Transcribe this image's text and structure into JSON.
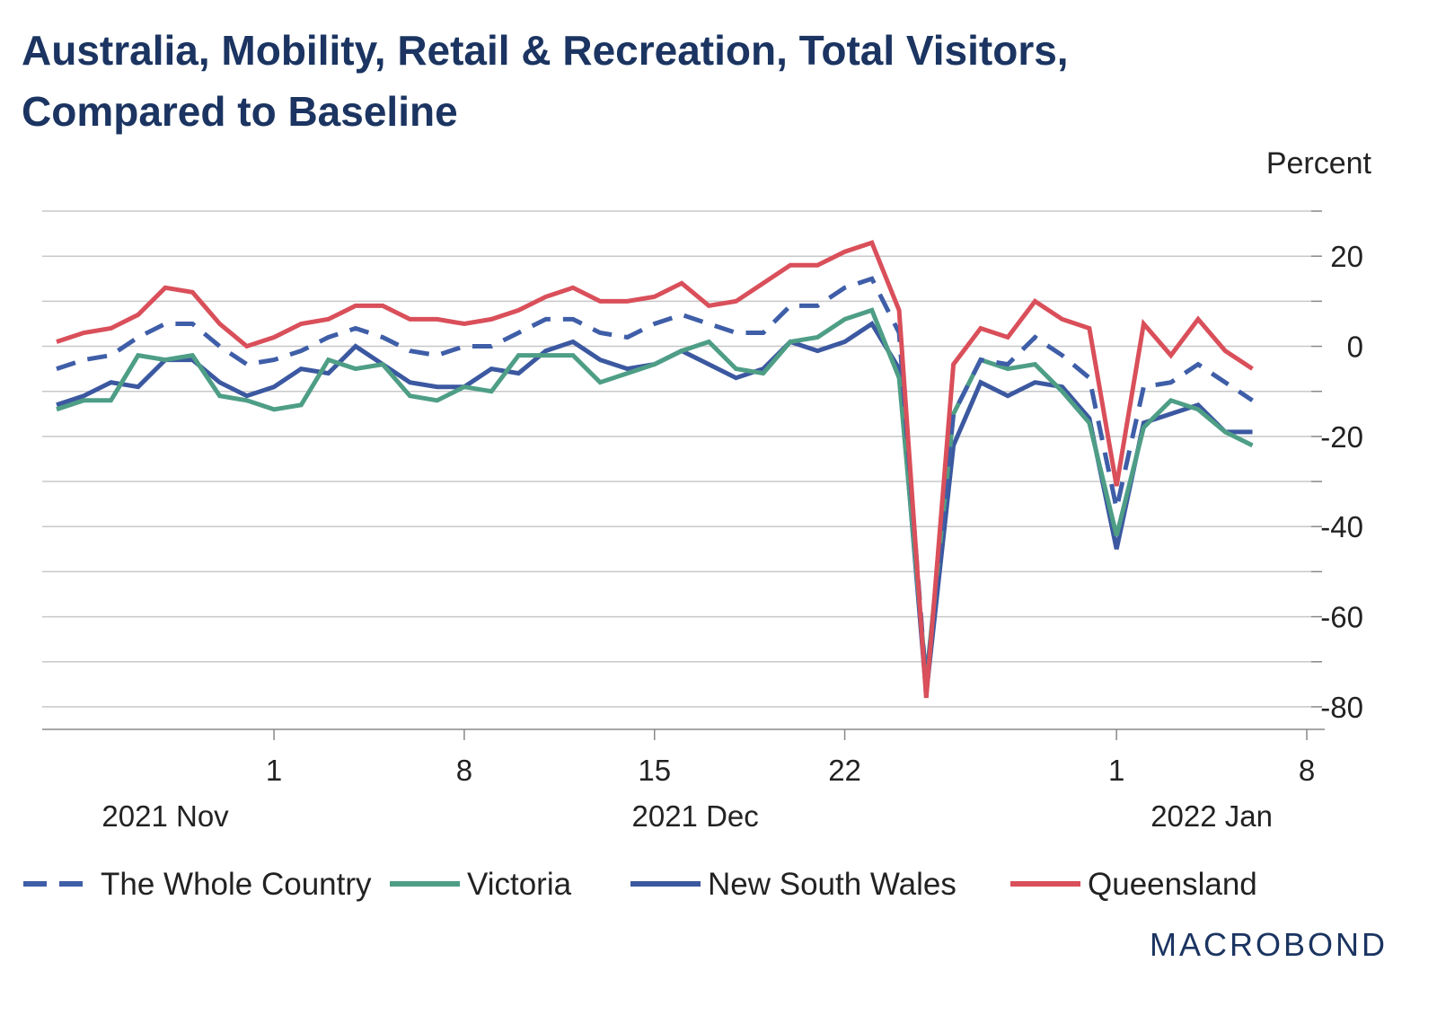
{
  "chart_data": {
    "type": "line",
    "title": "Australia, Mobility, Retail & Recreation, Total Visitors,",
    "subtitle": "Compared to Baseline",
    "y_label": "Percent",
    "brand": "MACROBOND",
    "x": [
      "2021-11-23",
      "2021-11-24",
      "2021-11-25",
      "2021-11-26",
      "2021-11-27",
      "2021-11-28",
      "2021-11-29",
      "2021-11-30",
      "2021-12-01",
      "2021-12-02",
      "2021-12-03",
      "2021-12-04",
      "2021-12-05",
      "2021-12-06",
      "2021-12-07",
      "2021-12-08",
      "2021-12-09",
      "2021-12-10",
      "2021-12-11",
      "2021-12-12",
      "2021-12-13",
      "2021-12-14",
      "2021-12-15",
      "2021-12-16",
      "2021-12-17",
      "2021-12-18",
      "2021-12-19",
      "2021-12-20",
      "2021-12-21",
      "2021-12-22",
      "2021-12-23",
      "2021-12-24",
      "2021-12-25",
      "2021-12-26",
      "2021-12-27",
      "2021-12-28",
      "2021-12-29",
      "2021-12-30",
      "2021-12-31",
      "2022-01-01",
      "2022-01-02",
      "2022-01-03",
      "2022-01-04",
      "2022-01-05",
      "2022-01-06"
    ],
    "series": [
      {
        "name": "The Whole Country",
        "color": "#3f5ea8",
        "dash": true,
        "values": [
          -5,
          -3,
          -2,
          2,
          5,
          5,
          0,
          -4,
          -3,
          -1,
          2,
          4,
          2,
          -1,
          -2,
          0,
          0,
          3,
          6,
          6,
          3,
          2,
          5,
          7,
          5,
          3,
          3,
          9,
          9,
          13,
          15,
          3,
          -75,
          -15,
          -3,
          -4,
          2,
          -2,
          -7,
          -36,
          -9,
          -8,
          -4,
          -8,
          -12
        ]
      },
      {
        "name": "Victoria",
        "color": "#4e9e86",
        "dash": false,
        "values": [
          -14,
          -12,
          -12,
          -2,
          -3,
          -2,
          -11,
          -12,
          -14,
          -13,
          -3,
          -5,
          -4,
          -11,
          -12,
          -9,
          -10,
          -2,
          -2,
          -2,
          -8,
          -6,
          -4,
          -1,
          1,
          -5,
          -6,
          1,
          2,
          6,
          8,
          -7,
          -74,
          -15,
          -3,
          -5,
          -4,
          -10,
          -17,
          -42,
          -18,
          -12,
          -14,
          -19,
          -22
        ]
      },
      {
        "name": "New South Wales",
        "color": "#3b58a0",
        "dash": false,
        "values": [
          -13,
          -11,
          -8,
          -9,
          -3,
          -3,
          -8,
          -11,
          -9,
          -5,
          -6,
          0,
          -4,
          -8,
          -9,
          -9,
          -5,
          -6,
          -1,
          1,
          -3,
          -5,
          -4,
          -1,
          -4,
          -7,
          -5,
          1,
          -1,
          1,
          5,
          -5,
          -77,
          -22,
          -8,
          -11,
          -8,
          -9,
          -16,
          -45,
          -17,
          -15,
          -13,
          -19,
          -19
        ]
      },
      {
        "name": "Queensland",
        "color": "#d94f5a",
        "dash": false,
        "values": [
          1,
          3,
          4,
          7,
          13,
          12,
          5,
          0,
          2,
          5,
          6,
          9,
          9,
          6,
          6,
          5,
          6,
          8,
          11,
          13,
          10,
          10,
          11,
          14,
          9,
          10,
          14,
          18,
          18,
          21,
          23,
          8,
          -78,
          -4,
          4,
          2,
          10,
          6,
          4,
          -31,
          5,
          -2,
          6,
          -1,
          -5
        ]
      }
    ],
    "xlim": [
      "2021-11-23",
      "2022-01-08"
    ],
    "xticks": [
      {
        "value": "2021-12-01",
        "label": "1"
      },
      {
        "value": "2021-12-08",
        "label": "8"
      },
      {
        "value": "2021-12-15",
        "label": "15"
      },
      {
        "value": "2021-12-22",
        "label": "22"
      },
      {
        "value": "2022-01-01",
        "label": "1"
      },
      {
        "value": "2022-01-08",
        "label": "8"
      }
    ],
    "month_labels": [
      {
        "value": "2021-11",
        "label": "2021 Nov"
      },
      {
        "value": "2021-12",
        "label": "2021 Dec"
      },
      {
        "value": "2022-01",
        "label": "2022 Jan"
      }
    ],
    "ylim": [
      -85,
      32
    ],
    "yticks": [
      20,
      0,
      -20,
      -40,
      -60,
      -80
    ],
    "yticks_minor": [
      30,
      10,
      -10,
      -30,
      -50,
      -70
    ],
    "grid": true
  }
}
